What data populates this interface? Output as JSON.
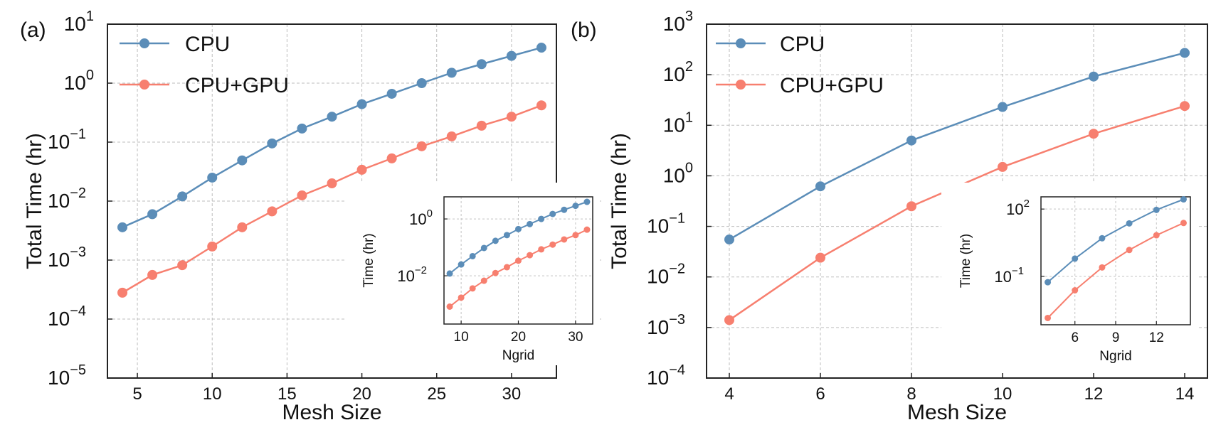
{
  "chart_data": [
    {
      "panel_label": "(a)",
      "type": "line",
      "xlabel": "Mesh Size",
      "ylabel": "Total Time (hr)",
      "yscale": "log",
      "xlim": [
        3,
        33
      ],
      "ylim": [
        1e-05,
        10
      ],
      "xticks": [
        5,
        10,
        15,
        20,
        25,
        30
      ],
      "yticks": [
        {
          "exp": "1"
        },
        {
          "exp": "0"
        },
        {
          "exp": "−1"
        },
        {
          "exp": "−2"
        },
        {
          "exp": "−3"
        },
        {
          "exp": "−4"
        },
        {
          "exp": "−5"
        }
      ],
      "ytick_base": "10",
      "grid": true,
      "legend": "top-left",
      "x": [
        4,
        6,
        8,
        10,
        12,
        14,
        16,
        18,
        20,
        22,
        24,
        26,
        28,
        30,
        32
      ],
      "series": [
        {
          "name": "CPU",
          "color": "#5b8db8",
          "values": [
            0.0036,
            0.006,
            0.012,
            0.025,
            0.049,
            0.095,
            0.17,
            0.27,
            0.44,
            0.66,
            1.0,
            1.5,
            2.1,
            2.9,
            4.0
          ]
        },
        {
          "name": "CPU+GPU",
          "color": "#f77f6f",
          "values": [
            0.00028,
            0.00056,
            0.00082,
            0.0017,
            0.0036,
            0.0067,
            0.0125,
            0.02,
            0.034,
            0.053,
            0.085,
            0.125,
            0.19,
            0.27,
            0.42
          ]
        }
      ],
      "inset": {
        "xlabel": "Ngrid",
        "ylabel": "Time (hr)",
        "yscale": "log",
        "xlim": [
          7,
          33
        ],
        "ylim": [
          0.0002,
          6
        ],
        "xticks": [
          10,
          20,
          30
        ],
        "yticks": [
          {
            "exp": "0"
          },
          {
            "exp": "−2"
          }
        ],
        "x": [
          8,
          10,
          12,
          14,
          16,
          18,
          20,
          22,
          24,
          26,
          28,
          30,
          32
        ]
      }
    },
    {
      "panel_label": "(b)",
      "type": "line",
      "xlabel": "Mesh Size",
      "ylabel": "Total Time (hr)",
      "yscale": "log",
      "xlim": [
        3.5,
        14.5
      ],
      "ylim": [
        0.0001,
        1000
      ],
      "xticks": [
        4,
        6,
        8,
        10,
        12,
        14
      ],
      "yticks": [
        {
          "exp": "3"
        },
        {
          "exp": "2"
        },
        {
          "exp": "1"
        },
        {
          "exp": "0"
        },
        {
          "exp": "−1"
        },
        {
          "exp": "−2"
        },
        {
          "exp": "−3"
        },
        {
          "exp": "−4"
        }
      ],
      "ytick_base": "10",
      "grid": true,
      "legend": "top-left",
      "x": [
        4,
        6,
        8,
        10,
        12,
        14
      ],
      "series": [
        {
          "name": "CPU",
          "color": "#5b8db8",
          "values": [
            0.055,
            0.62,
            5.0,
            23,
            92,
            270
          ]
        },
        {
          "name": "CPU+GPU",
          "color": "#f77f6f",
          "values": [
            0.0014,
            0.024,
            0.25,
            1.5,
            6.8,
            24
          ]
        }
      ],
      "inset": {
        "xlabel": "Ngrid",
        "ylabel": "Time (hr)",
        "yscale": "log",
        "xlim": [
          3.5,
          14.5
        ],
        "ylim": [
          0.0007,
          350
        ],
        "xticks": [
          6,
          9,
          12
        ],
        "yticks": [
          {
            "exp": "2"
          },
          {
            "exp": "−1"
          }
        ],
        "x": [
          4,
          6,
          8,
          10,
          12,
          14
        ]
      }
    }
  ]
}
